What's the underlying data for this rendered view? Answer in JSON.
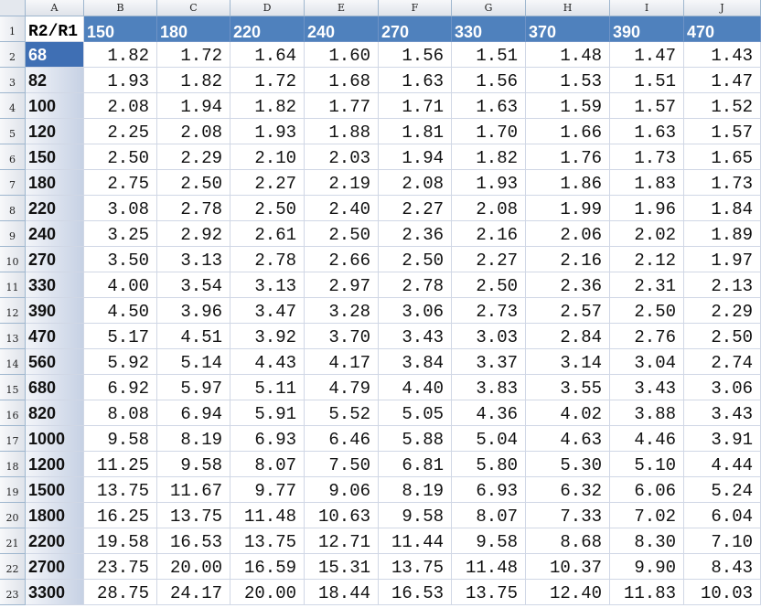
{
  "columns": [
    "A",
    "B",
    "C",
    "D",
    "E",
    "F",
    "G",
    "H",
    "I",
    "J"
  ],
  "rows": [
    {
      "number": 1,
      "cells": [
        "R2/R1",
        "150",
        "180",
        "220",
        "240",
        "270",
        "330",
        "370",
        "390",
        "470"
      ]
    },
    {
      "number": 2,
      "cells": [
        "68",
        "1.82",
        "1.72",
        "1.64",
        "1.60",
        "1.56",
        "1.51",
        "1.48",
        "1.47",
        "1.43"
      ]
    },
    {
      "number": 3,
      "cells": [
        "82",
        "1.93",
        "1.82",
        "1.72",
        "1.68",
        "1.63",
        "1.56",
        "1.53",
        "1.51",
        "1.47"
      ]
    },
    {
      "number": 4,
      "cells": [
        "100",
        "2.08",
        "1.94",
        "1.82",
        "1.77",
        "1.71",
        "1.63",
        "1.59",
        "1.57",
        "1.52"
      ]
    },
    {
      "number": 5,
      "cells": [
        "120",
        "2.25",
        "2.08",
        "1.93",
        "1.88",
        "1.81",
        "1.70",
        "1.66",
        "1.63",
        "1.57"
      ]
    },
    {
      "number": 6,
      "cells": [
        "150",
        "2.50",
        "2.29",
        "2.10",
        "2.03",
        "1.94",
        "1.82",
        "1.76",
        "1.73",
        "1.65"
      ]
    },
    {
      "number": 7,
      "cells": [
        "180",
        "2.75",
        "2.50",
        "2.27",
        "2.19",
        "2.08",
        "1.93",
        "1.86",
        "1.83",
        "1.73"
      ]
    },
    {
      "number": 8,
      "cells": [
        "220",
        "3.08",
        "2.78",
        "2.50",
        "2.40",
        "2.27",
        "2.08",
        "1.99",
        "1.96",
        "1.84"
      ]
    },
    {
      "number": 9,
      "cells": [
        "240",
        "3.25",
        "2.92",
        "2.61",
        "2.50",
        "2.36",
        "2.16",
        "2.06",
        "2.02",
        "1.89"
      ]
    },
    {
      "number": 10,
      "cells": [
        "270",
        "3.50",
        "3.13",
        "2.78",
        "2.66",
        "2.50",
        "2.27",
        "2.16",
        "2.12",
        "1.97"
      ]
    },
    {
      "number": 11,
      "cells": [
        "330",
        "4.00",
        "3.54",
        "3.13",
        "2.97",
        "2.78",
        "2.50",
        "2.36",
        "2.31",
        "2.13"
      ]
    },
    {
      "number": 12,
      "cells": [
        "390",
        "4.50",
        "3.96",
        "3.47",
        "3.28",
        "3.06",
        "2.73",
        "2.57",
        "2.50",
        "2.29"
      ]
    },
    {
      "number": 13,
      "cells": [
        "470",
        "5.17",
        "4.51",
        "3.92",
        "3.70",
        "3.43",
        "3.03",
        "2.84",
        "2.76",
        "2.50"
      ]
    },
    {
      "number": 14,
      "cells": [
        "560",
        "5.92",
        "5.14",
        "4.43",
        "4.17",
        "3.84",
        "3.37",
        "3.14",
        "3.04",
        "2.74"
      ]
    },
    {
      "number": 15,
      "cells": [
        "680",
        "6.92",
        "5.97",
        "5.11",
        "4.79",
        "4.40",
        "3.83",
        "3.55",
        "3.43",
        "3.06"
      ]
    },
    {
      "number": 16,
      "cells": [
        "820",
        "8.08",
        "6.94",
        "5.91",
        "5.52",
        "5.05",
        "4.36",
        "4.02",
        "3.88",
        "3.43"
      ]
    },
    {
      "number": 17,
      "cells": [
        "1000",
        "9.58",
        "8.19",
        "6.93",
        "6.46",
        "5.88",
        "5.04",
        "4.63",
        "4.46",
        "3.91"
      ]
    },
    {
      "number": 18,
      "cells": [
        "1200",
        "11.25",
        "9.58",
        "8.07",
        "7.50",
        "6.81",
        "5.80",
        "5.30",
        "5.10",
        "4.44"
      ]
    },
    {
      "number": 19,
      "cells": [
        "1500",
        "13.75",
        "11.67",
        "9.77",
        "9.06",
        "8.19",
        "6.93",
        "6.32",
        "6.06",
        "5.24"
      ]
    },
    {
      "number": 20,
      "cells": [
        "1800",
        "16.25",
        "13.75",
        "11.48",
        "10.63",
        "9.58",
        "8.07",
        "7.33",
        "7.02",
        "6.04"
      ]
    },
    {
      "number": 21,
      "cells": [
        "2200",
        "19.58",
        "16.53",
        "13.75",
        "12.71",
        "11.44",
        "9.58",
        "8.68",
        "8.30",
        "7.10"
      ]
    },
    {
      "number": 22,
      "cells": [
        "2700",
        "23.75",
        "20.00",
        "16.59",
        "15.31",
        "13.75",
        "11.48",
        "10.37",
        "9.90",
        "8.43"
      ]
    },
    {
      "number": 23,
      "cells": [
        "3300",
        "28.75",
        "24.17",
        "20.00",
        "18.44",
        "16.53",
        "13.75",
        "12.40",
        "11.83",
        "10.03"
      ]
    }
  ]
}
